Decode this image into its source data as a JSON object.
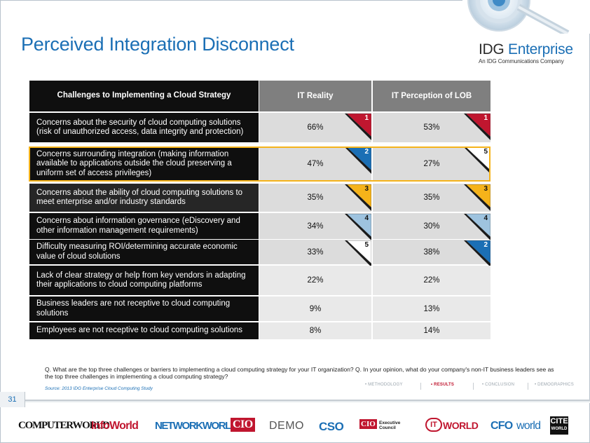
{
  "slide": {
    "title": "Perceived Integration Disconnect",
    "page_number": "31"
  },
  "brand": {
    "name_part1": "IDG",
    "name_part2": "Enterprise",
    "tagline": "An IDG Communications Company"
  },
  "table": {
    "headers": [
      "Challenges to Implementing a Cloud Strategy",
      "IT Reality",
      "IT Perception of LOB"
    ],
    "rows": [
      {
        "label": "Concerns about the security of cloud computing solutions (risk of unauthorized access, data integrity and protection)",
        "it": "66%",
        "lob": "53%",
        "it_rank": "1",
        "lob_rank": "1"
      },
      {
        "label": "Concerns surrounding integration (making information available to applications outside the cloud preserving a uniform set of access privileges)",
        "it": "47%",
        "lob": "27%",
        "it_rank": "2",
        "lob_rank": "5"
      },
      {
        "label": "Concerns about the ability of cloud computing solutions to meet enterprise and/or industry standards",
        "it": "35%",
        "lob": "35%",
        "it_rank": "3",
        "lob_rank": "3"
      },
      {
        "label": "Concerns about information governance (eDiscovery and other information management requirements)",
        "it": "34%",
        "lob": "30%",
        "it_rank": "4",
        "lob_rank": "4"
      },
      {
        "label": "Difficulty measuring ROI/determining accurate economic value of cloud solutions",
        "it": "33%",
        "lob": "38%",
        "it_rank": "5",
        "lob_rank": "2"
      },
      {
        "label": "Lack of clear strategy or help from key vendors in adapting their applications to cloud computing platforms",
        "it": "22%",
        "lob": "22%",
        "it_rank": "",
        "lob_rank": ""
      },
      {
        "label": "Business leaders are not receptive to cloud computing solutions",
        "it": "9%",
        "lob": "13%",
        "it_rank": "",
        "lob_rank": ""
      },
      {
        "label": "Employees are not receptive to cloud computing solutions",
        "it": "8%",
        "lob": "14%",
        "it_rank": "",
        "lob_rank": ""
      }
    ],
    "rank_colors": {
      "1": "#c0162f",
      "2": "#1b6fb5",
      "3": "#f5b31a",
      "4": "#9ec3df",
      "5": "#ffffff"
    }
  },
  "footer": {
    "question": "Q. What are the top three challenges or barriers to implementing a cloud computing strategy for your IT organization? Q.  In your opinion, what do your company's non-IT business leaders see as the top three challenges in implementing a cloud computing strategy?",
    "source": "Source: 2013 IDG Enterprise Cloud Computing Study",
    "nav": [
      "• METHODOLOGY",
      "• RESULTS",
      "• CONCLUSION",
      "• DEMOGRAPHICS"
    ],
    "nav_active": 1
  },
  "logos": [
    "COMPUTERWORLD",
    "InfoWorld",
    "NETWORKWORLD",
    "CIO",
    "DEMO",
    "CSO",
    "CIO",
    "Executive Council",
    "IT",
    "WORLD",
    "CFO",
    "world",
    "CITE",
    "WORLD"
  ]
}
